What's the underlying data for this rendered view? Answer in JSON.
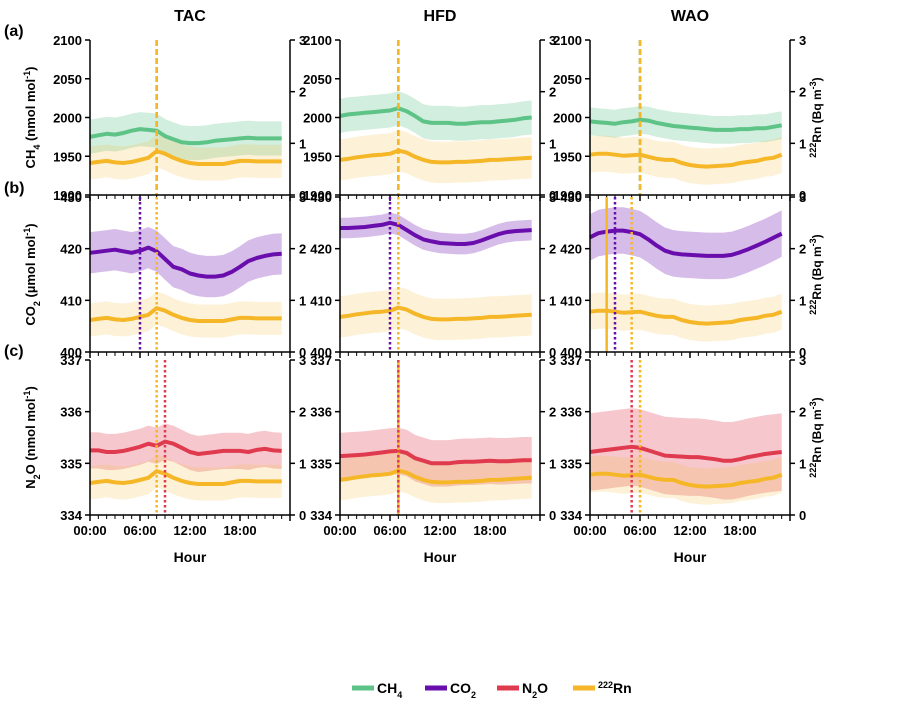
{
  "colors": {
    "ch4": "#5dc387",
    "co2": "#6a0dad",
    "n2o": "#e03a4f",
    "rn": "#f5b728",
    "axis": "#000000"
  },
  "columns": [
    "TAC",
    "HFD",
    "WAO"
  ],
  "row_labels": [
    "(a)",
    "(b)",
    "(c)"
  ],
  "row_titles": [
    {
      "pre": "CH",
      "sub": "4",
      "post": " (nmol mol",
      "sup": "-1",
      "end": ")",
      "color_key": "ch4"
    },
    {
      "pre": "CO",
      "sub": "2",
      "post": " (µmol mol",
      "sup": "-1",
      "end": ")",
      "color_key": "co2"
    },
    {
      "pre": "N",
      "sub": "2",
      "post": "O (nmol mol",
      "sup": "-1",
      "end": ")",
      "color_key": "n2o"
    }
  ],
  "right_title": {
    "sup": "222",
    "text": "Rn (Bq m",
    "sup2": "-3",
    "end": ")"
  },
  "xlabel": "Hour",
  "x_ticks": [
    "00:00",
    "06:00",
    "12:00",
    "18:00"
  ],
  "legend": [
    {
      "key": "ch4",
      "pre": "CH",
      "sub": "4",
      "post": ""
    },
    {
      "key": "co2",
      "pre": "CO",
      "sub": "2",
      "post": ""
    },
    {
      "key": "n2o",
      "pre": "N",
      "sub": "2",
      "post": "O"
    },
    {
      "key": "rn",
      "pre": "",
      "sup": "222",
      "post": "Rn"
    }
  ],
  "chart_data": [
    {
      "panel": "a-TAC",
      "type": "line",
      "x": "hour 0-23",
      "ylim": [
        1900,
        2100
      ],
      "y2lim": [
        0,
        3
      ],
      "series": [
        {
          "name": "CH4",
          "axis": "left",
          "values": [
            1975,
            1977,
            1979,
            1978,
            1980,
            1983,
            1985,
            1984,
            1983,
            1976,
            1972,
            1968,
            1967,
            1967,
            1968,
            1970,
            1971,
            1972,
            1973,
            1974,
            1973,
            1973,
            1973,
            1973
          ],
          "spread": 22
        },
        {
          "name": "222Rn",
          "axis": "right",
          "values": [
            0.62,
            0.64,
            0.66,
            0.63,
            0.62,
            0.64,
            0.68,
            0.72,
            0.85,
            0.8,
            0.72,
            0.66,
            0.62,
            0.6,
            0.6,
            0.6,
            0.6,
            0.63,
            0.66,
            0.66,
            0.65,
            0.65,
            0.65,
            0.65
          ],
          "spread": 0.32
        }
      ],
      "vlines": [
        {
          "key": "ch4",
          "x": 8,
          "style": "dashed"
        },
        {
          "key": "rn",
          "x": 8,
          "style": "dashed"
        }
      ]
    },
    {
      "panel": "a-HFD",
      "type": "line",
      "x": "hour 0-23",
      "ylim": [
        1900,
        2100
      ],
      "y2lim": [
        0,
        3
      ],
      "series": [
        {
          "name": "CH4",
          "axis": "left",
          "values": [
            2002,
            2004,
            2005,
            2006,
            2007,
            2008,
            2009,
            2012,
            2008,
            2002,
            1995,
            1993,
            1993,
            1993,
            1992,
            1992,
            1993,
            1994,
            1994,
            1995,
            1996,
            1997,
            1999,
            2000
          ],
          "spread": 22
        },
        {
          "name": "222Rn",
          "axis": "right",
          "values": [
            0.68,
            0.7,
            0.73,
            0.75,
            0.77,
            0.78,
            0.8,
            0.86,
            0.82,
            0.74,
            0.68,
            0.64,
            0.63,
            0.63,
            0.64,
            0.64,
            0.65,
            0.66,
            0.68,
            0.68,
            0.69,
            0.7,
            0.71,
            0.72
          ],
          "spread": 0.4
        }
      ],
      "vlines": [
        {
          "key": "ch4",
          "x": 7,
          "style": "dashed"
        },
        {
          "key": "rn",
          "x": 7,
          "style": "dashed"
        }
      ]
    },
    {
      "panel": "a-WAO",
      "type": "line",
      "x": "hour 0-23",
      "ylim": [
        1900,
        2100
      ],
      "y2lim": [
        0,
        3
      ],
      "series": [
        {
          "name": "CH4",
          "axis": "left",
          "values": [
            1995,
            1994,
            1993,
            1992,
            1994,
            1995,
            1997,
            1996,
            1993,
            1991,
            1989,
            1988,
            1987,
            1986,
            1985,
            1984,
            1984,
            1984,
            1985,
            1985,
            1986,
            1986,
            1988,
            1990
          ],
          "spread": 18
        },
        {
          "name": "222Rn",
          "axis": "right",
          "values": [
            0.78,
            0.8,
            0.8,
            0.78,
            0.76,
            0.77,
            0.78,
            0.74,
            0.7,
            0.68,
            0.68,
            0.62,
            0.58,
            0.56,
            0.55,
            0.56,
            0.57,
            0.58,
            0.62,
            0.64,
            0.66,
            0.7,
            0.72,
            0.78
          ],
          "spread": 0.35
        }
      ],
      "vlines": [
        {
          "key": "ch4",
          "x": 6,
          "style": "dashed"
        },
        {
          "key": "rn",
          "x": 6,
          "style": "dashed"
        }
      ]
    },
    {
      "panel": "b-TAC",
      "type": "line",
      "x": "hour 0-23",
      "ylim": [
        400,
        430
      ],
      "y2lim": [
        0,
        3
      ],
      "series": [
        {
          "name": "CO2",
          "axis": "left",
          "values": [
            419.2,
            419.4,
            419.6,
            419.8,
            419.5,
            419.2,
            419.6,
            420.2,
            419.5,
            418.0,
            416.5,
            416.0,
            415.2,
            414.8,
            414.6,
            414.6,
            414.8,
            415.5,
            416.5,
            417.6,
            418.2,
            418.6,
            418.9,
            419.0
          ],
          "spread": 4
        },
        {
          "name": "222Rn",
          "axis": "right",
          "values": [
            0.62,
            0.64,
            0.66,
            0.63,
            0.62,
            0.64,
            0.68,
            0.72,
            0.85,
            0.8,
            0.72,
            0.66,
            0.62,
            0.6,
            0.6,
            0.6,
            0.6,
            0.63,
            0.66,
            0.66,
            0.65,
            0.65,
            0.65,
            0.65
          ],
          "spread": 0.32
        }
      ],
      "vlines": [
        {
          "key": "co2",
          "x": 6,
          "style": "dotted"
        },
        {
          "key": "rn",
          "x": 8,
          "style": "dotted"
        }
      ]
    },
    {
      "panel": "b-HFD",
      "type": "line",
      "x": "hour 0-23",
      "ylim": [
        400,
        430
      ],
      "y2lim": [
        0,
        3
      ],
      "series": [
        {
          "name": "CO2",
          "axis": "left",
          "values": [
            424.0,
            424.0,
            424.1,
            424.2,
            424.4,
            424.6,
            425.0,
            424.6,
            423.6,
            422.6,
            421.8,
            421.4,
            421.1,
            421.0,
            420.9,
            420.9,
            421.1,
            421.6,
            422.2,
            422.8,
            423.2,
            423.4,
            423.5,
            423.6
          ],
          "spread": 2
        },
        {
          "name": "222Rn",
          "axis": "right",
          "values": [
            0.68,
            0.7,
            0.73,
            0.75,
            0.77,
            0.78,
            0.8,
            0.86,
            0.82,
            0.74,
            0.68,
            0.64,
            0.63,
            0.63,
            0.64,
            0.64,
            0.65,
            0.66,
            0.68,
            0.68,
            0.69,
            0.7,
            0.71,
            0.72
          ],
          "spread": 0.4
        }
      ],
      "vlines": [
        {
          "key": "co2",
          "x": 6,
          "style": "dotted"
        },
        {
          "key": "rn",
          "x": 7,
          "style": "dotted"
        }
      ]
    },
    {
      "panel": "b-WAO",
      "type": "line",
      "x": "hour 0-23",
      "ylim": [
        400,
        430
      ],
      "y2lim": [
        0,
        3
      ],
      "series": [
        {
          "name": "CO2",
          "axis": "left",
          "values": [
            422.2,
            423.0,
            423.3,
            423.5,
            423.5,
            423.2,
            422.8,
            421.8,
            420.6,
            419.6,
            419.1,
            418.9,
            418.8,
            418.7,
            418.6,
            418.6,
            418.6,
            418.8,
            419.3,
            419.9,
            420.6,
            421.3,
            422.1,
            422.9
          ],
          "spread": 4.5
        },
        {
          "name": "222Rn",
          "axis": "right",
          "values": [
            0.78,
            0.8,
            0.8,
            0.78,
            0.76,
            0.77,
            0.78,
            0.74,
            0.7,
            0.68,
            0.68,
            0.62,
            0.58,
            0.56,
            0.55,
            0.56,
            0.57,
            0.58,
            0.62,
            0.64,
            0.66,
            0.7,
            0.72,
            0.78
          ],
          "spread": 0.35
        }
      ],
      "vlines": [
        {
          "key": "rn",
          "x": 2,
          "style": "solid"
        },
        {
          "key": "co2",
          "x": 3,
          "style": "dotted"
        },
        {
          "key": "rn",
          "x": 5,
          "style": "dotted"
        }
      ]
    },
    {
      "panel": "c-TAC",
      "type": "line",
      "x": "hour 0-23",
      "ylim": [
        334,
        337
      ],
      "y2lim": [
        0,
        3
      ],
      "series": [
        {
          "name": "N2O",
          "axis": "left",
          "values": [
            335.25,
            335.25,
            335.22,
            335.22,
            335.24,
            335.28,
            335.32,
            335.38,
            335.34,
            335.42,
            335.38,
            335.3,
            335.22,
            335.18,
            335.2,
            335.22,
            335.24,
            335.24,
            335.24,
            335.22,
            335.26,
            335.28,
            335.25,
            335.24
          ],
          "spread": 0.35
        },
        {
          "name": "222Rn",
          "axis": "right",
          "values": [
            0.62,
            0.64,
            0.66,
            0.63,
            0.62,
            0.64,
            0.68,
            0.72,
            0.85,
            0.8,
            0.72,
            0.66,
            0.62,
            0.6,
            0.6,
            0.6,
            0.6,
            0.63,
            0.66,
            0.66,
            0.65,
            0.65,
            0.65,
            0.65
          ],
          "spread": 0.32
        }
      ],
      "vlines": [
        {
          "key": "rn",
          "x": 8,
          "style": "dotted"
        },
        {
          "key": "n2o",
          "x": 9,
          "style": "dotted"
        }
      ]
    },
    {
      "panel": "c-HFD",
      "type": "line",
      "x": "hour 0-23",
      "ylim": [
        334,
        337
      ],
      "y2lim": [
        0,
        3
      ],
      "series": [
        {
          "name": "N2O",
          "axis": "left",
          "values": [
            335.14,
            335.15,
            335.16,
            335.17,
            335.19,
            335.21,
            335.23,
            335.24,
            335.2,
            335.1,
            335.05,
            335.0,
            335.0,
            335.0,
            335.02,
            335.03,
            335.03,
            335.04,
            335.05,
            335.04,
            335.04,
            335.05,
            335.06,
            335.06
          ],
          "spread": 0.45
        },
        {
          "name": "222Rn",
          "axis": "right",
          "values": [
            0.68,
            0.7,
            0.73,
            0.75,
            0.77,
            0.78,
            0.8,
            0.86,
            0.82,
            0.74,
            0.68,
            0.64,
            0.63,
            0.63,
            0.64,
            0.64,
            0.65,
            0.66,
            0.68,
            0.68,
            0.69,
            0.7,
            0.71,
            0.72
          ],
          "spread": 0.4
        }
      ],
      "vlines": [
        {
          "key": "rn",
          "x": 7,
          "style": "solid"
        },
        {
          "key": "n2o",
          "x": 7,
          "style": "dotted"
        }
      ]
    },
    {
      "panel": "c-WAO",
      "type": "line",
      "x": "hour 0-23",
      "ylim": [
        334,
        337
      ],
      "y2lim": [
        0,
        3
      ],
      "series": [
        {
          "name": "N2O",
          "axis": "left",
          "values": [
            335.22,
            335.24,
            335.26,
            335.28,
            335.3,
            335.32,
            335.3,
            335.25,
            335.2,
            335.15,
            335.14,
            335.13,
            335.12,
            335.12,
            335.1,
            335.08,
            335.05,
            335.05,
            335.08,
            335.12,
            335.15,
            335.18,
            335.2,
            335.22
          ],
          "spread": 0.75
        },
        {
          "name": "222Rn",
          "axis": "right",
          "values": [
            0.78,
            0.8,
            0.8,
            0.78,
            0.76,
            0.77,
            0.78,
            0.74,
            0.7,
            0.68,
            0.68,
            0.62,
            0.58,
            0.56,
            0.55,
            0.56,
            0.57,
            0.58,
            0.62,
            0.64,
            0.66,
            0.7,
            0.72,
            0.78
          ],
          "spread": 0.35
        }
      ],
      "vlines": [
        {
          "key": "n2o",
          "x": 5,
          "style": "dotted"
        },
        {
          "key": "rn",
          "x": 6,
          "style": "dotted"
        }
      ]
    }
  ]
}
